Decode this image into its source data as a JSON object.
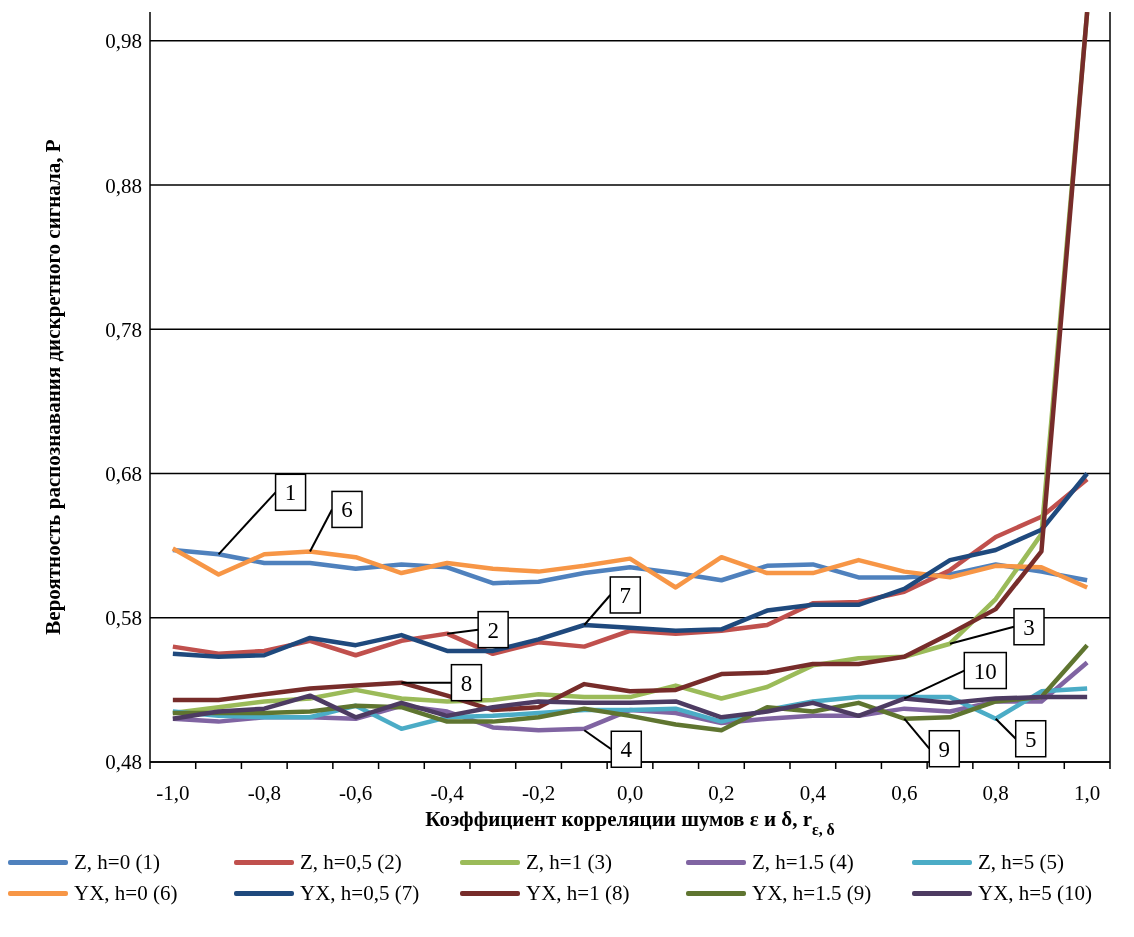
{
  "chart_data": {
    "type": "line",
    "xlabel": "Коэффициент корреляции шумов ε и δ, r$_{ε, δ}$",
    "ylabel": "Вероятность распознавания дискретного сигнала, P",
    "x": [
      -1.0,
      -0.9,
      -0.8,
      -0.7,
      -0.6,
      -0.5,
      -0.4,
      -0.3,
      -0.2,
      -0.1,
      0.0,
      0.1,
      0.2,
      0.3,
      0.4,
      0.5,
      0.6,
      0.7,
      0.8,
      0.9,
      1.0
    ],
    "series": [
      {
        "name": "Z, h=0 (1)",
        "color": "#4f81bd",
        "values": [
          0.627,
          0.624,
          0.618,
          0.618,
          0.614,
          0.617,
          0.615,
          0.604,
          0.605,
          0.611,
          0.615,
          0.611,
          0.606,
          0.616,
          0.617,
          0.608,
          0.608,
          0.61,
          0.617,
          0.612,
          0.606
        ]
      },
      {
        "name": "Z, h=0,5 (2)",
        "color": "#c0504d",
        "values": [
          0.56,
          0.555,
          0.557,
          0.564,
          0.554,
          0.564,
          0.569,
          0.555,
          0.563,
          0.56,
          0.571,
          0.569,
          0.571,
          0.575,
          0.59,
          0.591,
          0.598,
          0.613,
          0.636,
          0.65,
          0.676
        ]
      },
      {
        "name": "Z, h=1 (3)",
        "color": "#9bbb59",
        "values": [
          0.514,
          0.518,
          0.522,
          0.524,
          0.53,
          0.524,
          0.522,
          0.523,
          0.527,
          0.525,
          0.525,
          0.533,
          0.524,
          0.532,
          0.547,
          0.552,
          0.553,
          0.562,
          0.593,
          0.638,
          1.0
        ]
      },
      {
        "name": "Z, h=1.5 (4)",
        "color": "#8064a2",
        "values": [
          0.51,
          0.508,
          0.511,
          0.511,
          0.51,
          0.519,
          0.515,
          0.504,
          0.502,
          0.503,
          0.516,
          0.514,
          0.507,
          0.51,
          0.512,
          0.512,
          0.517,
          0.515,
          0.522,
          0.522,
          0.549
        ]
      },
      {
        "name": "Z, h=5 (5)",
        "color": "#4bacc6",
        "values": [
          0.515,
          0.512,
          0.511,
          0.511,
          0.519,
          0.503,
          0.511,
          0.512,
          0.514,
          0.516,
          0.516,
          0.517,
          0.508,
          0.516,
          0.522,
          0.525,
          0.525,
          0.525,
          0.51,
          0.529,
          0.531
        ]
      },
      {
        "name": "YX, h=0 (6)",
        "color": "#f79646",
        "values": [
          0.628,
          0.61,
          0.624,
          0.626,
          0.622,
          0.611,
          0.618,
          0.614,
          0.612,
          0.616,
          0.621,
          0.601,
          0.622,
          0.611,
          0.611,
          0.62,
          0.612,
          0.608,
          0.616,
          0.615,
          0.601
        ]
      },
      {
        "name": "YX, h=0,5 (7)",
        "color": "#1f497d",
        "values": [
          0.555,
          0.553,
          0.554,
          0.566,
          0.561,
          0.568,
          0.557,
          0.557,
          0.565,
          0.575,
          0.573,
          0.571,
          0.572,
          0.585,
          0.589,
          0.589,
          0.6,
          0.62,
          0.627,
          0.641,
          0.68
        ]
      },
      {
        "name": "YX, h=1 (8)",
        "color": "#772c2a",
        "values": [
          0.523,
          0.523,
          0.527,
          0.531,
          0.533,
          0.535,
          0.526,
          0.516,
          0.518,
          0.534,
          0.529,
          0.53,
          0.541,
          0.542,
          0.548,
          0.548,
          0.553,
          0.569,
          0.586,
          0.626,
          1.0
        ]
      },
      {
        "name": "YX, h=1.5 (9)",
        "color": "#5f7530",
        "values": [
          0.514,
          0.514,
          0.514,
          0.515,
          0.519,
          0.518,
          0.508,
          0.508,
          0.511,
          0.517,
          0.512,
          0.506,
          0.502,
          0.518,
          0.515,
          0.521,
          0.51,
          0.511,
          0.522,
          0.525,
          0.561
        ]
      },
      {
        "name": "YX, h=5 (10)",
        "color": "#4d3b62",
        "values": [
          0.51,
          0.515,
          0.517,
          0.526,
          0.511,
          0.521,
          0.512,
          0.518,
          0.522,
          0.521,
          0.521,
          0.522,
          0.511,
          0.515,
          0.521,
          0.512,
          0.524,
          0.521,
          0.524,
          0.525,
          0.525
        ]
      }
    ],
    "xlim": [
      -1.05,
      1.05
    ],
    "xticks": [
      {
        "value": -1.0,
        "label": "-1,0"
      },
      {
        "value": -0.8,
        "label": "-0,8"
      },
      {
        "value": -0.6,
        "label": "-0,6"
      },
      {
        "value": -0.4,
        "label": "-0,4"
      },
      {
        "value": -0.2,
        "label": "-0,2"
      },
      {
        "value": 0.0,
        "label": "0,0"
      },
      {
        "value": 0.2,
        "label": "0,2"
      },
      {
        "value": 0.4,
        "label": "0,4"
      },
      {
        "value": 0.6,
        "label": "0,6"
      },
      {
        "value": 0.8,
        "label": "0,8"
      },
      {
        "value": 1.0,
        "label": "1,0"
      },
      {
        "value": -1.05,
        "label": null
      },
      {
        "value": -0.95,
        "label": null
      },
      {
        "value": -0.85,
        "label": null
      },
      {
        "value": -0.75,
        "label": null
      },
      {
        "value": -0.65,
        "label": null
      },
      {
        "value": -0.55,
        "label": null
      },
      {
        "value": -0.45,
        "label": null
      },
      {
        "value": -0.35,
        "label": null
      },
      {
        "value": -0.25,
        "label": null
      },
      {
        "value": -0.15,
        "label": null
      },
      {
        "value": -0.05,
        "label": null
      },
      {
        "value": 0.05,
        "label": null
      },
      {
        "value": 0.15,
        "label": null
      },
      {
        "value": 0.25,
        "label": null
      },
      {
        "value": 0.35,
        "label": null
      },
      {
        "value": 0.45,
        "label": null
      },
      {
        "value": 0.55,
        "label": null
      },
      {
        "value": 0.65,
        "label": null
      },
      {
        "value": 0.75,
        "label": null
      },
      {
        "value": 0.85,
        "label": null
      },
      {
        "value": 0.95,
        "label": null
      },
      {
        "value": 1.05,
        "label": null
      }
    ],
    "ylim": [
      0.48,
      1.0
    ],
    "yticks": [
      {
        "value": 0.48,
        "label": "0,48"
      },
      {
        "value": 0.58,
        "label": "0,58"
      },
      {
        "value": 0.68,
        "label": "0,68"
      },
      {
        "value": 0.78,
        "label": "0,78"
      },
      {
        "value": 0.88,
        "label": "0,88"
      },
      {
        "value": 0.98,
        "label": "0,98"
      }
    ],
    "grid": "y",
    "legend": "bottom",
    "marker": "none",
    "line_style": "solid",
    "annotations": [
      {
        "text": "1",
        "x": -0.9,
        "y": 0.624
      },
      {
        "text": "6",
        "x": -0.7,
        "y": 0.626
      },
      {
        "text": "2",
        "x": -0.4,
        "y": 0.569
      },
      {
        "text": "7",
        "x": -0.1,
        "y": 0.575
      },
      {
        "text": "8",
        "x": -0.5,
        "y": 0.535
      },
      {
        "text": "3",
        "x": 0.7,
        "y": 0.562
      },
      {
        "text": "10",
        "x": 0.6,
        "y": 0.524
      },
      {
        "text": "4",
        "x": -0.1,
        "y": 0.502
      },
      {
        "text": "9",
        "x": 0.6,
        "y": 0.51
      },
      {
        "text": "5",
        "x": 0.8,
        "y": 0.51
      }
    ]
  }
}
